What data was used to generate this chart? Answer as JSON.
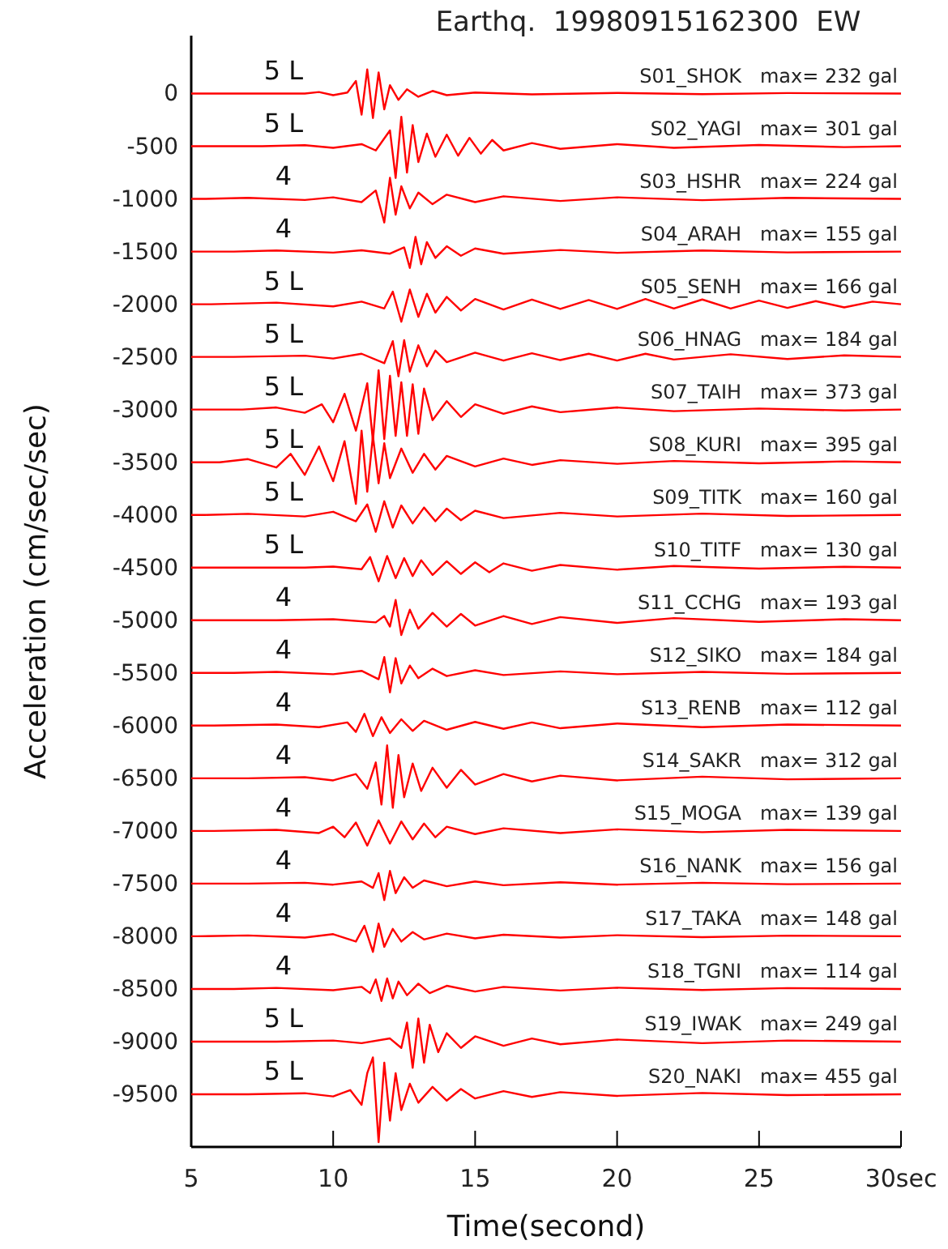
{
  "chart_data": {
    "type": "line",
    "title": "Earthq.  19980915162300  EW",
    "xlabel": "Time(second)",
    "ylabel": "Acceleration (cm/sec/sec)",
    "xlim": [
      5,
      30
    ],
    "xticks": [
      5,
      10,
      15,
      20,
      25,
      {
        "value": 30,
        "label": "30sec"
      }
    ],
    "ylim": [
      -10000,
      550
    ],
    "yticks": [
      0,
      -500,
      -1000,
      -1500,
      -2000,
      -2500,
      -3000,
      -3500,
      -4000,
      -4500,
      -5000,
      -5500,
      -6000,
      -6500,
      -7000,
      -7500,
      -8000,
      -8500,
      -9000,
      -9500
    ],
    "series": [
      {
        "name": "S01_SHOK   max= 232 gal",
        "color": "#ff0000",
        "x": [
          5,
          9,
          9.5,
          10,
          10.5,
          10.8,
          11.0,
          11.2,
          11.4,
          11.6,
          11.8,
          12.0,
          12.3,
          12.6,
          13.0,
          13.5,
          14,
          15,
          17,
          20,
          23,
          26,
          30
        ],
        "values": [
          0,
          0,
          15,
          -15,
          10,
          120,
          -200,
          230,
          -232,
          200,
          -150,
          80,
          -60,
          40,
          -30,
          25,
          -15,
          10,
          -8,
          6,
          -6,
          5,
          0
        ]
      },
      {
        "name": "S02_YAGI   max= 301 gal",
        "color": "#ff0000",
        "x": [
          5,
          7.5,
          9,
          10,
          11,
          11.5,
          12.0,
          12.2,
          12.4,
          12.6,
          12.8,
          13.0,
          13.3,
          13.6,
          14,
          14.4,
          14.8,
          15.2,
          15.6,
          16,
          17,
          18,
          20,
          22,
          25,
          28,
          30
        ],
        "values": [
          -500,
          -500,
          -490,
          -515,
          -480,
          -540,
          -350,
          -801,
          -220,
          -750,
          -300,
          -650,
          -380,
          -600,
          -390,
          -590,
          -420,
          -570,
          -440,
          -540,
          -470,
          -525,
          -480,
          -515,
          -488,
          -508,
          -500
        ]
      },
      {
        "name": "S03_HSHR   max= 224 gal",
        "color": "#ff0000",
        "x": [
          5,
          5.5,
          7,
          9,
          10,
          11,
          11.5,
          11.8,
          12.0,
          12.2,
          12.4,
          12.7,
          13.0,
          13.5,
          14,
          15,
          16,
          18,
          20,
          23,
          26,
          30
        ],
        "values": [
          -1000,
          -1000,
          -990,
          -1010,
          -985,
          -1030,
          -920,
          -1224,
          -800,
          -1150,
          -880,
          -1090,
          -940,
          -1050,
          -960,
          -1030,
          -975,
          -1020,
          -985,
          -1012,
          -990,
          -1000
        ]
      },
      {
        "name": "S04_ARAH   max= 155 gal",
        "color": "#ff0000",
        "x": [
          5,
          6.5,
          8,
          10,
          11,
          12,
          12.5,
          12.7,
          12.9,
          13.1,
          13.3,
          13.6,
          14,
          14.5,
          15,
          16,
          18,
          20,
          23,
          26,
          30
        ],
        "values": [
          -1500,
          -1500,
          -1490,
          -1510,
          -1488,
          -1520,
          -1460,
          -1655,
          -1360,
          -1620,
          -1410,
          -1560,
          -1450,
          -1540,
          -1470,
          -1520,
          -1485,
          -1512,
          -1490,
          -1508,
          -1500
        ]
      },
      {
        "name": "S05_SENH   max= 166 gal",
        "color": "#ff0000",
        "x": [
          5,
          5.7,
          8,
          10,
          11,
          11.8,
          12.1,
          12.4,
          12.7,
          13.0,
          13.3,
          13.6,
          14,
          14.5,
          15,
          16,
          17,
          18,
          19,
          20,
          21,
          22,
          23,
          24,
          25,
          26,
          27,
          28,
          29,
          30
        ],
        "values": [
          -2000,
          -2000,
          -1985,
          -2020,
          -1975,
          -2040,
          -1880,
          -2166,
          -1860,
          -2120,
          -1900,
          -2080,
          -1930,
          -2060,
          -1950,
          -2050,
          -1955,
          -2045,
          -1960,
          -2045,
          -1950,
          -2040,
          -1955,
          -2040,
          -1965,
          -2035,
          -1970,
          -2030,
          -1975,
          -2000
        ]
      },
      {
        "name": "S06_HNAG   max= 184 gal",
        "color": "#ff0000",
        "x": [
          5,
          6.5,
          9,
          10,
          11,
          11.8,
          12.1,
          12.3,
          12.5,
          12.7,
          13.0,
          13.3,
          13.6,
          14,
          15,
          16,
          17,
          18,
          19,
          20,
          21,
          22,
          24,
          26,
          28,
          30
        ],
        "values": [
          -2500,
          -2500,
          -2488,
          -2515,
          -2470,
          -2560,
          -2350,
          -2684,
          -2340,
          -2640,
          -2390,
          -2590,
          -2440,
          -2550,
          -2460,
          -2535,
          -2465,
          -2530,
          -2470,
          -2535,
          -2470,
          -2525,
          -2475,
          -2520,
          -2485,
          -2500
        ]
      },
      {
        "name": "S07_TAIH   max= 373 gal",
        "color": "#ff0000",
        "x": [
          5,
          6.8,
          8,
          9,
          9.6,
          10,
          10.4,
          10.8,
          11.2,
          11.4,
          11.6,
          11.8,
          12.0,
          12.2,
          12.4,
          12.6,
          12.8,
          13.0,
          13.2,
          13.5,
          14,
          14.5,
          15,
          16,
          17,
          18,
          20,
          22,
          25,
          28,
          30
        ],
        "values": [
          -3000,
          -3000,
          -2980,
          -3030,
          -2950,
          -3120,
          -2850,
          -3200,
          -2750,
          -3300,
          -2627,
          -3280,
          -2680,
          -3250,
          -2740,
          -3250,
          -2760,
          -3230,
          -2800,
          -3100,
          -2920,
          -3070,
          -2950,
          -3040,
          -2970,
          -3025,
          -2980,
          -3015,
          -2990,
          -3008,
          -3000
        ]
      },
      {
        "name": "S08_KURI   max= 395 gal",
        "color": "#ff0000",
        "x": [
          5,
          6,
          7,
          8,
          8.5,
          9,
          9.5,
          10,
          10.4,
          10.8,
          11.0,
          11.2,
          11.4,
          11.6,
          11.8,
          12.0,
          12.4,
          12.8,
          13.2,
          13.6,
          14,
          15,
          16,
          17,
          18,
          20,
          22,
          25,
          28,
          30
        ],
        "values": [
          -3500,
          -3500,
          -3470,
          -3550,
          -3420,
          -3620,
          -3350,
          -3680,
          -3300,
          -3895,
          -3200,
          -3780,
          -3250,
          -3700,
          -3320,
          -3650,
          -3370,
          -3600,
          -3420,
          -3570,
          -3440,
          -3540,
          -3465,
          -3525,
          -3480,
          -3515,
          -3488,
          -3510,
          -3492,
          -3500
        ]
      },
      {
        "name": "S09_TITK   max= 160 gal",
        "color": "#ff0000",
        "x": [
          5,
          5.5,
          7,
          9,
          10,
          10.8,
          11.2,
          11.5,
          11.8,
          12.1,
          12.4,
          12.8,
          13.2,
          13.6,
          14,
          14.5,
          15,
          16,
          18,
          20,
          23,
          26,
          30
        ],
        "values": [
          -4000,
          -4000,
          -3990,
          -4015,
          -3970,
          -4060,
          -3900,
          -4160,
          -3870,
          -4120,
          -3910,
          -4080,
          -3930,
          -4060,
          -3940,
          -4050,
          -3960,
          -4030,
          -3980,
          -4015,
          -3988,
          -4010,
          -4000
        ]
      },
      {
        "name": "S10_TITF   max= 130 gal",
        "color": "#ff0000",
        "x": [
          5,
          9,
          10,
          11,
          11.3,
          11.6,
          11.9,
          12.2,
          12.5,
          12.8,
          13.1,
          13.5,
          14,
          14.5,
          15,
          15.5,
          16,
          17,
          18,
          20,
          22,
          25,
          28,
          30
        ],
        "values": [
          -4500,
          -4500,
          -4490,
          -4515,
          -4400,
          -4630,
          -4390,
          -4600,
          -4410,
          -4580,
          -4430,
          -4570,
          -4440,
          -4560,
          -4450,
          -4545,
          -4460,
          -4530,
          -4475,
          -4520,
          -4485,
          -4510,
          -4492,
          -4500
        ]
      },
      {
        "name": "S11_CCHG   max= 193 gal",
        "color": "#ff0000",
        "x": [
          5,
          8,
          10,
          11.5,
          11.8,
          12.0,
          12.2,
          12.4,
          12.7,
          13,
          13.5,
          14,
          14.5,
          15,
          16,
          17,
          18,
          20,
          22,
          25,
          28,
          30
        ],
        "values": [
          -5000,
          -5000,
          -4990,
          -5020,
          -4960,
          -5060,
          -4807,
          -5140,
          -4900,
          -5080,
          -4930,
          -5060,
          -4940,
          -5050,
          -4960,
          -5035,
          -4970,
          -5025,
          -4980,
          -5015,
          -4990,
          -5000
        ]
      },
      {
        "name": "S12_SIKO   max= 184 gal",
        "color": "#ff0000",
        "x": [
          5,
          6.5,
          8,
          10,
          11,
          11.6,
          11.8,
          12.0,
          12.2,
          12.4,
          12.7,
          13,
          13.5,
          14,
          15,
          16,
          18,
          20,
          23,
          26,
          30
        ],
        "values": [
          -5500,
          -5500,
          -5490,
          -5512,
          -5480,
          -5560,
          -5350,
          -5684,
          -5360,
          -5600,
          -5430,
          -5550,
          -5460,
          -5530,
          -5475,
          -5520,
          -5485,
          -5512,
          -5490,
          -5508,
          -5500
        ]
      },
      {
        "name": "S13_RENB   max= 112 gal",
        "color": "#ff0000",
        "x": [
          5,
          5.8,
          8,
          9.5,
          10.5,
          10.8,
          11.1,
          11.4,
          11.7,
          12,
          12.4,
          12.8,
          13.2,
          14,
          15,
          16,
          17,
          18,
          20,
          23,
          26,
          30
        ],
        "values": [
          -6000,
          -6000,
          -5990,
          -6015,
          -5970,
          -6060,
          -5888,
          -6100,
          -5920,
          -6070,
          -5940,
          -6050,
          -5955,
          -6040,
          -5965,
          -6030,
          -5970,
          -6025,
          -5980,
          -6015,
          -5990,
          -6000
        ]
      },
      {
        "name": "S14_SAKR   max= 312 gal",
        "color": "#ff0000",
        "x": [
          5,
          7,
          9,
          10,
          10.8,
          11.2,
          11.5,
          11.7,
          11.9,
          12.1,
          12.3,
          12.5,
          12.8,
          13.1,
          13.5,
          14,
          14.5,
          15,
          16,
          17,
          18,
          20,
          23,
          26,
          30
        ],
        "values": [
          -6500,
          -6500,
          -6490,
          -6520,
          -6460,
          -6600,
          -6350,
          -6750,
          -6188,
          -6780,
          -6280,
          -6680,
          -6360,
          -6620,
          -6400,
          -6590,
          -6420,
          -6560,
          -6460,
          -6530,
          -6475,
          -6520,
          -6485,
          -6510,
          -6500
        ]
      },
      {
        "name": "S15_MOGA   max= 139 gal",
        "color": "#ff0000",
        "x": [
          5,
          5.8,
          8,
          9.5,
          10,
          10.4,
          10.8,
          11.2,
          11.6,
          12,
          12.4,
          12.8,
          13.2,
          13.6,
          14,
          15,
          16,
          18,
          20,
          23,
          26,
          30
        ],
        "values": [
          -7000,
          -7000,
          -6990,
          -7020,
          -6960,
          -7060,
          -6920,
          -7139,
          -6900,
          -7120,
          -6910,
          -7080,
          -6930,
          -7060,
          -6960,
          -7030,
          -6975,
          -7020,
          -6985,
          -7012,
          -6990,
          -7000
        ]
      },
      {
        "name": "S16_NANK   max= 156 gal",
        "color": "#ff0000",
        "x": [
          5,
          7,
          9,
          10,
          11,
          11.4,
          11.6,
          11.8,
          12.0,
          12.2,
          12.5,
          12.8,
          13.2,
          14,
          15,
          16,
          18,
          20,
          23,
          26,
          30
        ],
        "values": [
          -7500,
          -7500,
          -7492,
          -7510,
          -7480,
          -7540,
          -7400,
          -7656,
          -7380,
          -7590,
          -7440,
          -7540,
          -7470,
          -7525,
          -7480,
          -7515,
          -7488,
          -7510,
          -7492,
          -7506,
          -7500
        ]
      },
      {
        "name": "S17_TAKA   max= 148 gal",
        "color": "#ff0000",
        "x": [
          5,
          5.2,
          7,
          9,
          10,
          10.8,
          11.1,
          11.4,
          11.6,
          11.8,
          12.1,
          12.4,
          12.8,
          13.2,
          14,
          15,
          16,
          18,
          20,
          23,
          26,
          30
        ],
        "values": [
          -8000,
          -8000,
          -7992,
          -8012,
          -7980,
          -8050,
          -7900,
          -8148,
          -7880,
          -8100,
          -7930,
          -8050,
          -7960,
          -8030,
          -7975,
          -8020,
          -7985,
          -8012,
          -7990,
          -8008,
          -7994,
          -8000
        ]
      },
      {
        "name": "S18_TGNI   max= 114 gal",
        "color": "#ff0000",
        "x": [
          5,
          6.5,
          8,
          10,
          11,
          11.3,
          11.5,
          11.7,
          11.9,
          12.1,
          12.3,
          12.6,
          13,
          13.4,
          14,
          15,
          16,
          18,
          20,
          23,
          26,
          30
        ],
        "values": [
          -8500,
          -8500,
          -8490,
          -8512,
          -8480,
          -8540,
          -8410,
          -8614,
          -8400,
          -8590,
          -8430,
          -8560,
          -8450,
          -8540,
          -8470,
          -8525,
          -8480,
          -8515,
          -8488,
          -8510,
          -8492,
          -8500
        ]
      },
      {
        "name": "S19_IWAK   max= 249 gal",
        "color": "#ff0000",
        "x": [
          5,
          8,
          10,
          11,
          12,
          12.4,
          12.6,
          12.8,
          13.0,
          13.2,
          13.4,
          13.7,
          14,
          14.5,
          15,
          16,
          17,
          18,
          20,
          23,
          26,
          30
        ],
        "values": [
          -9000,
          -9000,
          -8990,
          -9015,
          -8970,
          -9060,
          -8820,
          -9249,
          -8780,
          -9200,
          -8840,
          -9100,
          -8920,
          -9060,
          -8950,
          -9040,
          -8970,
          -9025,
          -8980,
          -9015,
          -8990,
          -9000
        ]
      },
      {
        "name": "S20_NAKI   max= 455 gal",
        "color": "#ff0000",
        "x": [
          5,
          7,
          9,
          10,
          10.6,
          11.0,
          11.2,
          11.4,
          11.6,
          11.8,
          12.0,
          12.2,
          12.4,
          12.7,
          13,
          13.5,
          14,
          14.5,
          15,
          16,
          17,
          18,
          20,
          23,
          26,
          30
        ],
        "values": [
          -9500,
          -9500,
          -9490,
          -9520,
          -9460,
          -9600,
          -9300,
          -9150,
          -9955,
          -9200,
          -9750,
          -9300,
          -9650,
          -9400,
          -9580,
          -9430,
          -9560,
          -9450,
          -9540,
          -9470,
          -9525,
          -9480,
          -9515,
          -9488,
          -9508,
          -9500
        ]
      }
    ],
    "annotations": [
      "5 L",
      "5 L",
      "4",
      "4",
      "5 L",
      "5 L",
      "5 L",
      "5 L",
      "5 L",
      "5 L",
      "4",
      "4",
      "4",
      "4",
      "4",
      "4",
      "4",
      "4",
      "5 L",
      "5 L"
    ]
  }
}
